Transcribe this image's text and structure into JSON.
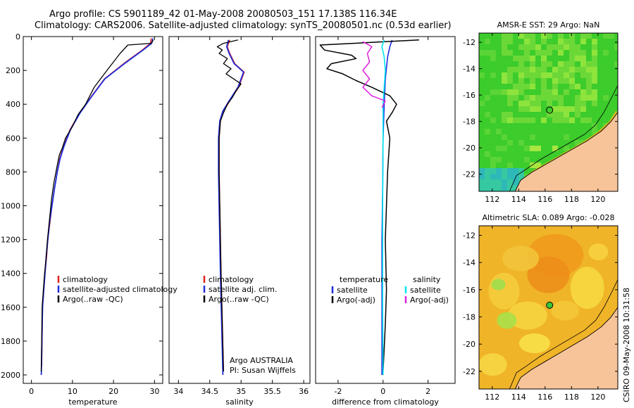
{
  "header": {
    "line1": "Argo profile: CS 5901189_42 01-May-2008 20080503_151 17.138S 116.34E",
    "line2": "Climatology: CARS2006. Satellite-adjusted climatology: synTS_20080501.nc (0.53d earlier)"
  },
  "stamp": "CSIRO 09-May-2008 10:31:58",
  "colors": {
    "climatology": "#e0201b",
    "satellite": "#1f2ddb",
    "argo": "#000000",
    "salinity_sat": "#00e5ee",
    "salinity_argo": "#e020e0",
    "land": "#f7c49a",
    "sst_green": "#3fcf2a",
    "sla_orange": "#f0a020"
  },
  "chart_data": [
    {
      "type": "line",
      "xlabel": "temperature",
      "ylabel": "",
      "xlim": [
        -2,
        32
      ],
      "ylim": [
        2050,
        0
      ],
      "yreverse": true,
      "xticks": [
        0,
        10,
        20,
        30
      ],
      "yticks": [
        0,
        200,
        400,
        600,
        800,
        1000,
        1200,
        1400,
        1600,
        1800,
        2000
      ],
      "legend": [
        "climatology",
        "satellite-adjusted climatology",
        "Argo(..raw -QC)"
      ],
      "legend_placement": "lower-right",
      "series": [
        {
          "name": "climatology",
          "color": "#e0201b",
          "width": 1.5,
          "x": [
            29.2,
            29.0,
            27.0,
            23.0,
            17.8,
            14.7,
            11.8,
            9.4,
            7.8,
            6.9,
            6.3,
            5.6,
            5.0,
            4.5,
            4.0,
            3.7,
            3.3,
            3.0,
            2.7,
            2.5
          ],
          "y": [
            10,
            40,
            80,
            150,
            250,
            350,
            450,
            550,
            650,
            720,
            800,
            900,
            1000,
            1100,
            1200,
            1300,
            1400,
            1500,
            1600,
            1950
          ]
        },
        {
          "name": "satellite-adjusted climatology",
          "color": "#1f2ddb",
          "width": 1.8,
          "x": [
            29.6,
            29.3,
            27.2,
            23.2,
            17.9,
            14.8,
            11.9,
            9.5,
            7.9,
            7.0,
            6.3,
            5.6,
            5.0,
            4.4,
            4.0,
            3.6,
            3.3,
            3.0,
            2.7,
            2.4
          ],
          "y": [
            10,
            40,
            80,
            150,
            250,
            350,
            450,
            550,
            650,
            720,
            800,
            900,
            1000,
            1100,
            1200,
            1300,
            1400,
            1500,
            1600,
            2000
          ]
        },
        {
          "name": "Argo(..raw -QC)",
          "color": "#000000",
          "width": 1.3,
          "x": [
            29.7,
            29.2,
            23.5,
            21.6,
            18.4,
            15.3,
            13.2,
            11.4,
            9.8,
            8.3,
            7.5,
            6.8,
            6.3,
            5.5,
            4.9,
            4.4,
            3.9,
            3.6,
            3.2,
            2.9,
            2.6,
            2.4
          ],
          "y": [
            20,
            40,
            50,
            100,
            200,
            300,
            400,
            460,
            540,
            600,
            660,
            700,
            760,
            860,
            960,
            1080,
            1200,
            1300,
            1400,
            1500,
            1600,
            1980
          ]
        }
      ]
    },
    {
      "type": "line",
      "xlabel": "salinity",
      "ylabel": "",
      "xlim": [
        33.85,
        36.1
      ],
      "ylim": [
        2050,
        0
      ],
      "yreverse": true,
      "xticks": [
        34,
        34.5,
        35,
        35.5,
        36
      ],
      "yticks": [],
      "legend": [
        "climatology",
        "satellite adj. clim.",
        "Argo(..raw -QC)"
      ],
      "legend_placement": "lower-right",
      "annotations": [
        "Argo AUSTRALIA",
        "PI: Susan Wijffels"
      ],
      "series": [
        {
          "name": "climatology",
          "color": "#e0201b",
          "width": 1.5,
          "x": [
            34.82,
            34.78,
            34.82,
            34.9,
            35.05,
            34.96,
            34.82,
            34.72,
            34.67,
            34.65,
            34.65,
            34.66,
            34.68,
            34.7,
            34.72
          ],
          "y": [
            20,
            60,
            100,
            160,
            210,
            300,
            380,
            440,
            500,
            600,
            800,
            1000,
            1400,
            1700,
            1980
          ]
        },
        {
          "name": "satellite adj. clim.",
          "color": "#1f2ddb",
          "width": 1.8,
          "x": [
            34.8,
            34.77,
            34.81,
            34.89,
            35.04,
            34.95,
            34.81,
            34.71,
            34.66,
            34.64,
            34.64,
            34.65,
            34.67,
            34.69,
            34.71
          ],
          "y": [
            20,
            60,
            100,
            160,
            210,
            300,
            380,
            440,
            500,
            600,
            800,
            1000,
            1400,
            1700,
            2000
          ]
        },
        {
          "name": "Argo(..raw -QC)",
          "color": "#000000",
          "width": 1.3,
          "x": [
            34.95,
            34.72,
            34.62,
            34.7,
            34.65,
            34.78,
            34.72,
            34.84,
            34.76,
            34.88,
            35.0,
            34.92,
            34.86,
            34.78,
            34.72,
            34.67,
            34.65,
            34.65,
            34.66,
            34.68,
            34.7,
            34.72
          ],
          "y": [
            20,
            40,
            60,
            80,
            100,
            130,
            160,
            190,
            220,
            250,
            280,
            320,
            360,
            400,
            450,
            500,
            600,
            800,
            1000,
            1400,
            1700,
            1980
          ]
        }
      ]
    },
    {
      "type": "line",
      "xlabel": "difference from climatology",
      "ylabel": "",
      "xlim": [
        -3,
        3.2
      ],
      "ylim": [
        2050,
        0
      ],
      "yreverse": true,
      "xticks": [
        -2,
        0,
        2
      ],
      "yticks": [],
      "legend_groups": [
        {
          "title": "temperature",
          "entries": [
            "satellite",
            "Argo(-adj)"
          ]
        },
        {
          "title": "salinity",
          "entries": [
            "satellite",
            "Argo(-adj)"
          ]
        }
      ],
      "legend_placement": "lower-right",
      "series": [
        {
          "name": "temperature satellite",
          "color": "#1f2ddb",
          "width": 1.6,
          "x": [
            0.4,
            0.3,
            0.2,
            0.1,
            0.05,
            0.0,
            -0.02,
            -0.05,
            -0.05,
            -0.05
          ],
          "y": [
            20,
            60,
            120,
            250,
            400,
            600,
            900,
            1200,
            1600,
            2000
          ]
        },
        {
          "name": "temperature Argo(-adj)",
          "color": "#000000",
          "width": 1.5,
          "x": [
            1.6,
            -2.8,
            -2.6,
            -1.4,
            -1.2,
            -2.3,
            -2.5,
            -1.8,
            -1.2,
            -0.5,
            0.3,
            0.6,
            0.4,
            0.15,
            0.3,
            0.2,
            0.1,
            0.15,
            0.1,
            0.0
          ],
          "y": [
            20,
            50,
            80,
            110,
            130,
            160,
            190,
            220,
            260,
            300,
            350,
            400,
            450,
            500,
            600,
            800,
            1200,
            1500,
            1700,
            1980
          ]
        },
        {
          "name": "salinity satellite",
          "color": "#00e5ee",
          "width": 1.6,
          "x": [
            0.05,
            -0.05,
            0.05,
            0.1,
            0.05,
            0.0,
            0.0,
            -0.02,
            -0.02,
            0.0
          ],
          "y": [
            20,
            60,
            120,
            200,
            300,
            400,
            600,
            1000,
            1600,
            2000
          ]
        },
        {
          "name": "salinity Argo(-adj)",
          "color": "#e020e0",
          "width": 1.5,
          "x": [
            -0.9,
            -0.5,
            -0.7,
            -0.6,
            -0.9,
            -0.6,
            -0.9,
            -0.5,
            0.1,
            -0.05
          ],
          "y": [
            30,
            60,
            100,
            150,
            200,
            250,
            300,
            350,
            380,
            420
          ]
        }
      ]
    }
  ],
  "maps": [
    {
      "title": "AMSR-E SST: 29 Argo: NaN",
      "kind": "sst",
      "xlim": [
        111,
        121.5
      ],
      "ylim": [
        -23.3,
        -11.3
      ],
      "xticks": [
        112,
        114,
        116,
        118,
        120
      ],
      "yticks": [
        -12,
        -14,
        -16,
        -18,
        -20,
        -22
      ],
      "marker": {
        "lon": 116.34,
        "lat": -17.138,
        "filled": false
      }
    },
    {
      "title": "Altimetric SLA: 0.089 Argo: -0.028",
      "kind": "sla",
      "xlim": [
        111,
        121.5
      ],
      "ylim": [
        -23.3,
        -11.3
      ],
      "xticks": [
        112,
        114,
        116,
        118,
        120
      ],
      "yticks": [
        -12,
        -14,
        -16,
        -18,
        -20,
        -22
      ],
      "marker": {
        "lon": 116.34,
        "lat": -17.138,
        "filled": true
      }
    }
  ]
}
